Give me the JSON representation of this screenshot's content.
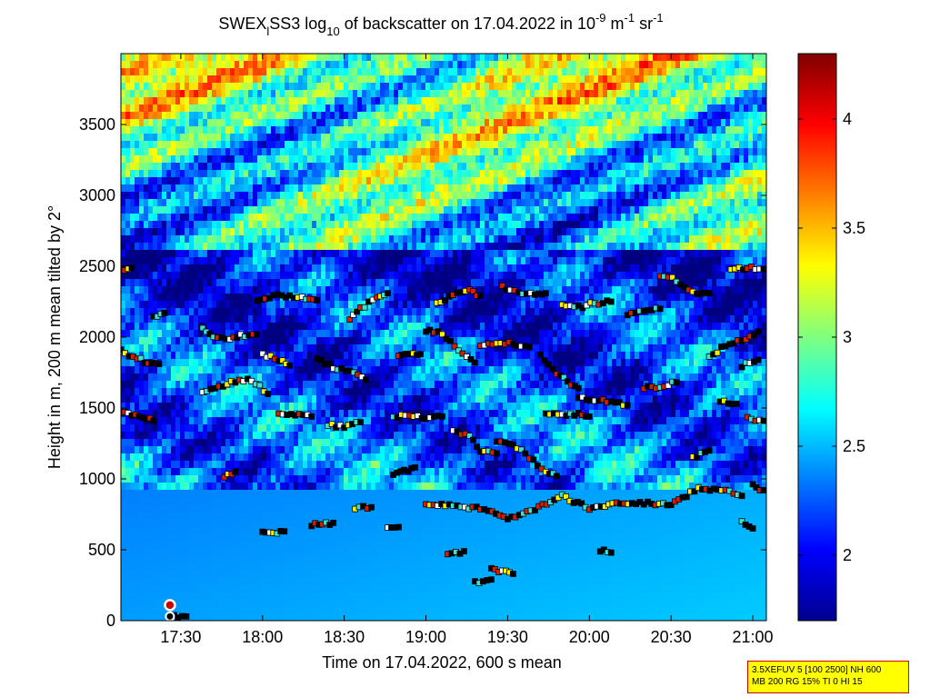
{
  "chart_data": {
    "type": "heatmap",
    "title": {
      "prefix": "SWEX",
      "sub1": "l",
      "mid": "SS3 log",
      "sub2": "10",
      "mid2": " of backscatter on 17.04.2022 in 10",
      "sup1": "-9",
      "mid3": " m",
      "sup2": "-1",
      "mid4": " sr",
      "sup3": "-1"
    },
    "xlabel": "Time on 17.04.2022, 600 s mean",
    "ylabel": "Height in m, 200 m mean tilted by 2°",
    "xlim_minutes_after_midnight": [
      1028,
      1265
    ],
    "ylim": [
      0,
      4000
    ],
    "xticks": [
      {
        "value": 1050,
        "label": "17:30"
      },
      {
        "value": 1080,
        "label": "18:00"
      },
      {
        "value": 1110,
        "label": "18:30"
      },
      {
        "value": 1140,
        "label": "19:00"
      },
      {
        "value": 1170,
        "label": "19:30"
      },
      {
        "value": 1200,
        "label": "20:00"
      },
      {
        "value": 1230,
        "label": "20:30"
      },
      {
        "value": 1260,
        "label": "21:00"
      }
    ],
    "yticks": [
      {
        "value": 0,
        "label": "0"
      },
      {
        "value": 500,
        "label": "500"
      },
      {
        "value": 1000,
        "label": "1000"
      },
      {
        "value": 1500,
        "label": "1500"
      },
      {
        "value": 2000,
        "label": "2000"
      },
      {
        "value": 2500,
        "label": "2500"
      },
      {
        "value": 3000,
        "label": "3000"
      },
      {
        "value": 3500,
        "label": "3500"
      }
    ],
    "colorbar": {
      "range": [
        1.7,
        4.3
      ],
      "ticks": [
        {
          "value": 2,
          "label": "2"
        },
        {
          "value": 2.5,
          "label": "2.5"
        },
        {
          "value": 3,
          "label": "3"
        },
        {
          "value": 3.5,
          "label": "3.5"
        },
        {
          "value": 4,
          "label": "4"
        }
      ],
      "colormap": "jet"
    },
    "layer_traces": [
      {
        "name": "",
        "points": [
          [
            1028,
            1900
          ],
          [
            1034,
            1850
          ],
          [
            1038,
            1820
          ],
          [
            1042,
            1810
          ]
        ]
      },
      {
        "name": "",
        "points": [
          [
            1028,
            1480
          ],
          [
            1032,
            1450
          ],
          [
            1036,
            1430
          ],
          [
            1040,
            1410
          ]
        ]
      },
      {
        "name": "",
        "points": [
          [
            1028,
            2480
          ],
          [
            1032,
            2490
          ]
        ]
      },
      {
        "name": "",
        "points": [
          [
            1040,
            2150
          ],
          [
            1044,
            2170
          ]
        ]
      },
      {
        "name": "",
        "points": [
          [
            1058,
            2060
          ],
          [
            1062,
            2000
          ],
          [
            1068,
            1990
          ],
          [
            1072,
            2010
          ],
          [
            1078,
            2020
          ]
        ]
      },
      {
        "name": "",
        "points": [
          [
            1058,
            1620
          ],
          [
            1064,
            1650
          ],
          [
            1070,
            1690
          ],
          [
            1076,
            1700
          ],
          [
            1082,
            1600
          ]
        ]
      },
      {
        "name": "",
        "points": [
          [
            1078,
            2250
          ],
          [
            1084,
            2300
          ],
          [
            1090,
            2290
          ],
          [
            1096,
            2280
          ],
          [
            1100,
            2260
          ]
        ]
      },
      {
        "name": "",
        "points": [
          [
            1080,
            1880
          ],
          [
            1086,
            1840
          ],
          [
            1090,
            1800
          ]
        ]
      },
      {
        "name": "",
        "points": [
          [
            1086,
            1460
          ],
          [
            1092,
            1450
          ],
          [
            1098,
            1440
          ]
        ]
      },
      {
        "name": "",
        "points": [
          [
            1100,
            1850
          ],
          [
            1106,
            1780
          ],
          [
            1112,
            1760
          ],
          [
            1118,
            1700
          ]
        ]
      },
      {
        "name": "",
        "points": [
          [
            1104,
            1380
          ],
          [
            1110,
            1370
          ],
          [
            1116,
            1400
          ]
        ]
      },
      {
        "name": "",
        "points": [
          [
            1112,
            2130
          ],
          [
            1116,
            2200
          ],
          [
            1122,
            2290
          ],
          [
            1126,
            2310
          ]
        ]
      },
      {
        "name": "",
        "points": [
          [
            1130,
            1880
          ],
          [
            1134,
            1890
          ],
          [
            1138,
            1880
          ]
        ]
      },
      {
        "name": "",
        "points": [
          [
            1128,
            1440
          ],
          [
            1134,
            1450
          ],
          [
            1140,
            1430
          ],
          [
            1146,
            1440
          ]
        ]
      },
      {
        "name": "",
        "points": [
          [
            1140,
            2050
          ],
          [
            1146,
            2030
          ],
          [
            1152,
            1900
          ],
          [
            1158,
            1820
          ]
        ]
      },
      {
        "name": "",
        "points": [
          [
            1150,
            1340
          ],
          [
            1156,
            1300
          ],
          [
            1160,
            1200
          ],
          [
            1166,
            1180
          ]
        ]
      },
      {
        "name": "",
        "points": [
          [
            1144,
            2240
          ],
          [
            1150,
            2300
          ],
          [
            1156,
            2330
          ],
          [
            1160,
            2290
          ]
        ]
      },
      {
        "name": "",
        "points": [
          [
            1160,
            1950
          ],
          [
            1166,
            1960
          ],
          [
            1172,
            1950
          ],
          [
            1178,
            1930
          ]
        ]
      },
      {
        "name": "",
        "points": [
          [
            1166,
            1270
          ],
          [
            1172,
            1250
          ],
          [
            1178,
            1150
          ],
          [
            1184,
            1060
          ],
          [
            1188,
            1020
          ]
        ]
      },
      {
        "name": "",
        "points": [
          [
            1168,
            2350
          ],
          [
            1174,
            2320
          ],
          [
            1180,
            2300
          ],
          [
            1184,
            2310
          ]
        ]
      },
      {
        "name": "",
        "points": [
          [
            1182,
            1880
          ],
          [
            1188,
            1750
          ],
          [
            1192,
            1690
          ],
          [
            1196,
            1640
          ]
        ]
      },
      {
        "name": "",
        "points": [
          [
            1184,
            1460
          ],
          [
            1190,
            1450
          ],
          [
            1196,
            1460
          ],
          [
            1200,
            1440
          ]
        ]
      },
      {
        "name": "",
        "points": [
          [
            1190,
            2230
          ],
          [
            1196,
            2210
          ],
          [
            1202,
            2240
          ],
          [
            1208,
            2250
          ]
        ]
      },
      {
        "name": "",
        "points": [
          [
            1196,
            1580
          ],
          [
            1202,
            1560
          ],
          [
            1208,
            1550
          ],
          [
            1214,
            1520
          ]
        ]
      },
      {
        "name": "",
        "points": [
          [
            1214,
            2160
          ],
          [
            1220,
            2180
          ],
          [
            1226,
            2200
          ]
        ]
      },
      {
        "name": "",
        "points": [
          [
            1220,
            1640
          ],
          [
            1226,
            1650
          ],
          [
            1232,
            1680
          ]
        ]
      },
      {
        "name": "",
        "points": [
          [
            1226,
            2440
          ],
          [
            1232,
            2400
          ],
          [
            1238,
            2320
          ],
          [
            1244,
            2310
          ]
        ]
      },
      {
        "name": "",
        "points": [
          [
            1244,
            1860
          ],
          [
            1250,
            1940
          ],
          [
            1256,
            1980
          ],
          [
            1262,
            2040
          ]
        ]
      },
      {
        "name": "",
        "points": [
          [
            1252,
            2470
          ],
          [
            1258,
            2490
          ],
          [
            1264,
            2480
          ]
        ]
      },
      {
        "name": "",
        "points": [
          [
            1248,
            1550
          ],
          [
            1254,
            1530
          ]
        ]
      },
      {
        "name": "",
        "points": [
          [
            1258,
            1430
          ],
          [
            1264,
            1410
          ]
        ]
      },
      {
        "name": "",
        "points": [
          [
            1256,
            1800
          ],
          [
            1262,
            1840
          ]
        ]
      },
      {
        "name": "",
        "points": [
          [
            1140,
            820
          ],
          [
            1150,
            810
          ],
          [
            1160,
            790
          ],
          [
            1170,
            720
          ],
          [
            1180,
            790
          ],
          [
            1190,
            880
          ],
          [
            1200,
            790
          ],
          [
            1210,
            820
          ],
          [
            1220,
            830
          ],
          [
            1230,
            820
          ],
          [
            1240,
            930
          ],
          [
            1250,
            920
          ],
          [
            1256,
            880
          ]
        ]
      },
      {
        "name": "",
        "points": [
          [
            1066,
            1010
          ],
          [
            1070,
            1050
          ]
        ]
      },
      {
        "name": "",
        "points": [
          [
            1080,
            620
          ],
          [
            1088,
            630
          ]
        ]
      },
      {
        "name": "",
        "points": [
          [
            1098,
            680
          ],
          [
            1106,
            690
          ]
        ]
      },
      {
        "name": "",
        "points": [
          [
            1114,
            790
          ],
          [
            1120,
            800
          ]
        ]
      },
      {
        "name": "",
        "points": [
          [
            1126,
            650
          ],
          [
            1130,
            660
          ]
        ]
      },
      {
        "name": "",
        "points": [
          [
            1128,
            1030
          ],
          [
            1136,
            1080
          ]
        ]
      },
      {
        "name": "",
        "points": [
          [
            1148,
            470
          ],
          [
            1154,
            490
          ]
        ]
      },
      {
        "name": "",
        "points": [
          [
            1158,
            270
          ],
          [
            1164,
            290
          ]
        ]
      },
      {
        "name": "",
        "points": [
          [
            1164,
            360
          ],
          [
            1172,
            330
          ]
        ]
      },
      {
        "name": "",
        "points": [
          [
            1204,
            500
          ],
          [
            1208,
            480
          ]
        ]
      },
      {
        "name": "",
        "points": [
          [
            1238,
            1150
          ],
          [
            1244,
            1200
          ]
        ]
      },
      {
        "name": "",
        "points": [
          [
            1256,
            700
          ],
          [
            1260,
            650
          ]
        ]
      },
      {
        "name": "",
        "points": [
          [
            1260,
            950
          ],
          [
            1264,
            920
          ]
        ]
      },
      {
        "name": "",
        "points": [
          [
            1046,
            30
          ],
          [
            1052,
            30
          ]
        ]
      }
    ],
    "ground_marker": {
      "x": 1046,
      "y": 110
    }
  },
  "info_box": {
    "line1": "3.5XEFUV 5 [100 2500] NH 600",
    "line2": "MB 200 RG 15% TI 0 HI 15"
  }
}
